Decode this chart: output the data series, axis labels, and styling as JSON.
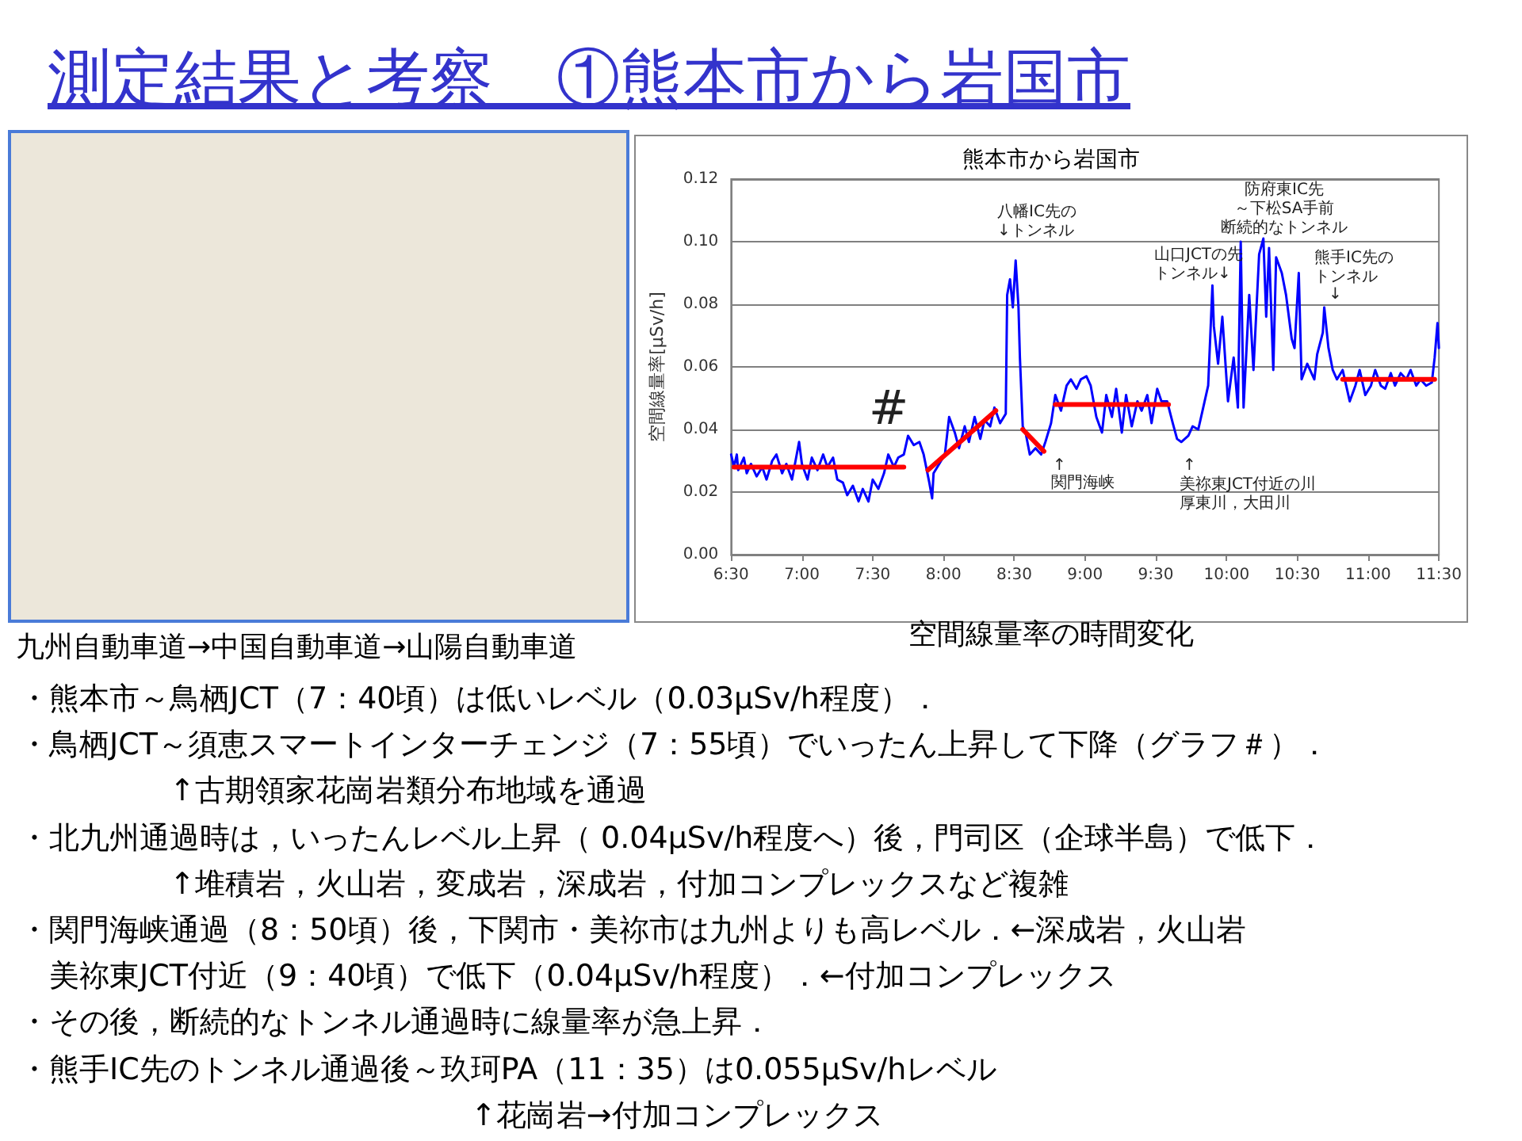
{
  "chart_data": {
    "type": "line",
    "title": "測定結果と考察　①熊本市から岩国市",
    "subtitle": "熊本市から岩国市",
    "ylabel": "空間線量率[μSv/h]",
    "annotations": [
      "九州自動車道→中国自動車道→山陽自動車道",
      "空間線量率の時間変化",
      "八幡IC先の",
      "↓トンネル",
      "#",
      "↑",
      "関門海峡",
      "山口JCTの先",
      "トンネル↓",
      "防府東IC先",
      "～下松SA手前",
      "断続的なトンネル",
      "熊手IC先の",
      "トンネル",
      "↓",
      "↑",
      "美祢東JCT付近の川",
      "厚東川，大田川",
      "・熊本市～鳥栖JCT（7：40頃）は低いレベル（0.03μSv/h程度）．",
      "・鳥栖JCT～須恵スマートインターチェンジ（7：55頃）でいったん上昇して下降（グラフ＃）．",
      "　　　　　↑古期領家花崗岩類分布地域を通過",
      "・北九州通過時は，いったんレベル上昇（ 0.04μSv/h程度へ）後，門司区（企球半島）で低下．",
      "　　　　　↑堆積岩，火山岩，変成岩，深成岩，付加コンプレックスなど複雑",
      "・関門海峡通過（8：50頃）後，下関市・美祢市は九州よりも高レベル．←深成岩，火山岩",
      "　美祢東JCT付近（9：40頃）で低下（0.04μSv/h程度）．←付加コンプレックス",
      "・その後，断続的なトンネル通過時に線量率が急上昇．",
      "・熊手IC先のトンネル通過後～玖珂PA（11：35）は0.055μSv/hレベル",
      "　　　　　　　　　　　　　　　↑花崗岩→付加コンプレックス"
    ],
    "x": [
      6.5,
      6.52,
      6.54,
      6.55,
      6.59,
      6.61,
      6.64,
      6.68,
      6.72,
      6.75,
      6.79,
      6.82,
      6.86,
      6.89,
      6.93,
      6.98,
      7.0,
      7.04,
      7.07,
      7.11,
      7.15,
      7.18,
      7.22,
      7.25,
      7.29,
      7.32,
      7.36,
      7.4,
      7.43,
      7.47,
      7.5,
      7.54,
      7.58,
      7.61,
      7.65,
      7.68,
      7.72,
      7.75,
      7.79,
      7.83,
      7.86,
      7.9,
      7.92,
      7.93,
      7.97,
      8.01,
      8.04,
      8.08,
      8.11,
      8.15,
      8.18,
      8.22,
      8.26,
      8.29,
      8.33,
      8.36,
      8.4,
      8.44,
      8.45,
      8.47,
      8.49,
      8.51,
      8.53,
      8.54,
      8.56,
      8.58,
      8.61,
      8.65,
      8.69,
      8.72,
      8.76,
      8.79,
      8.83,
      8.87,
      8.9,
      8.94,
      8.97,
      9.01,
      9.04,
      9.08,
      9.12,
      9.15,
      9.19,
      9.22,
      9.26,
      9.29,
      9.33,
      9.37,
      9.4,
      9.44,
      9.47,
      9.51,
      9.54,
      9.58,
      9.62,
      9.65,
      9.68,
      9.73,
      9.76,
      9.8,
      9.83,
      9.87,
      9.9,
      9.91,
      9.94,
      9.97,
      10.01,
      10.05,
      10.08,
      10.1,
      10.12,
      10.16,
      10.19,
      10.23,
      10.26,
      10.28,
      10.3,
      10.33,
      10.35,
      10.39,
      10.42,
      10.46,
      10.48,
      10.51,
      10.53,
      10.57,
      10.62,
      10.64,
      10.68,
      10.69,
      10.72,
      10.75,
      10.78,
      10.82,
      10.87,
      10.91,
      10.94,
      10.98,
      11.02,
      11.05,
      11.09,
      11.12,
      11.16,
      11.19,
      11.23,
      11.27,
      11.3,
      11.34,
      11.37,
      11.41,
      11.45,
      11.47,
      11.49,
      11.5
    ],
    "series": [
      {
        "color": "#0000ff",
        "values": [
          0.032,
          0.028,
          0.032,
          0.027,
          0.031,
          0.026,
          0.029,
          0.025,
          0.028,
          0.024,
          0.03,
          0.032,
          0.026,
          0.029,
          0.024,
          0.036,
          0.029,
          0.024,
          0.031,
          0.027,
          0.032,
          0.028,
          0.031,
          0.024,
          0.023,
          0.019,
          0.022,
          0.017,
          0.021,
          0.017,
          0.024,
          0.021,
          0.026,
          0.032,
          0.028,
          0.031,
          0.032,
          0.038,
          0.035,
          0.036,
          0.032,
          0.023,
          0.018,
          0.026,
          0.029,
          0.032,
          0.044,
          0.039,
          0.034,
          0.041,
          0.036,
          0.044,
          0.037,
          0.043,
          0.041,
          0.047,
          0.042,
          0.045,
          0.083,
          0.088,
          0.079,
          0.094,
          0.079,
          0.063,
          0.041,
          0.039,
          0.032,
          0.034,
          0.032,
          0.036,
          0.042,
          0.051,
          0.046,
          0.054,
          0.056,
          0.053,
          0.056,
          0.057,
          0.054,
          0.044,
          0.039,
          0.051,
          0.044,
          0.053,
          0.039,
          0.051,
          0.041,
          0.049,
          0.046,
          0.051,
          0.042,
          0.053,
          0.049,
          0.049,
          0.042,
          0.037,
          0.036,
          0.038,
          0.041,
          0.04,
          0.046,
          0.054,
          0.086,
          0.073,
          0.061,
          0.076,
          0.049,
          0.063,
          0.047,
          0.1,
          0.047,
          0.083,
          0.059,
          0.096,
          0.101,
          0.076,
          0.098,
          0.059,
          0.095,
          0.09,
          0.083,
          0.069,
          0.066,
          0.09,
          0.056,
          0.061,
          0.056,
          0.064,
          0.071,
          0.079,
          0.066,
          0.059,
          0.056,
          0.059,
          0.049,
          0.054,
          0.059,
          0.051,
          0.054,
          0.059,
          0.054,
          0.053,
          0.058,
          0.054,
          0.058,
          0.056,
          0.059,
          0.054,
          0.056,
          0.054,
          0.055,
          0.063,
          0.074,
          0.066
        ]
      },
      {
        "type": "line",
        "color": "#ff0000",
        "x": [
          6.52,
          7.72
        ],
        "values": [
          0.028,
          0.028
        ]
      },
      {
        "type": "line",
        "color": "#ff0000",
        "x": [
          7.89,
          8.37
        ],
        "values": [
          0.027,
          0.046
        ]
      },
      {
        "type": "line",
        "color": "#ff0000",
        "x": [
          8.56,
          8.71
        ],
        "values": [
          0.04,
          0.033
        ]
      },
      {
        "type": "line",
        "color": "#ff0000",
        "x": [
          8.79,
          9.59
        ],
        "values": [
          0.048,
          0.048
        ]
      },
      {
        "type": "line",
        "color": "#ff0000",
        "x": [
          10.82,
          11.47
        ],
        "values": [
          0.056,
          0.056
        ]
      }
    ],
    "xlim": [
      6.5,
      11.5
    ],
    "xticks": [
      {
        "value": 6.5,
        "label": "6:30"
      },
      {
        "value": 7,
        "label": "7:00"
      },
      {
        "value": 7.5,
        "label": "7:30"
      },
      {
        "value": 8,
        "label": "8:00"
      },
      {
        "value": 8.5,
        "label": "8:30"
      },
      {
        "value": 9,
        "label": "9:00"
      },
      {
        "value": 9.5,
        "label": "9:30"
      },
      {
        "value": 10,
        "label": "10:00"
      },
      {
        "value": 10.5,
        "label": "10:30"
      },
      {
        "value": 11,
        "label": "11:00"
      },
      {
        "value": 11.5,
        "label": "11:30"
      }
    ],
    "ylim": [
      0,
      0.12
    ],
    "yticks": [
      {
        "value": 0,
        "label": "0.00"
      },
      0.02,
      0.04,
      0.06,
      0.08,
      {
        "value": 0.1,
        "label": "0.10"
      },
      0.12
    ],
    "grid": "y"
  }
}
